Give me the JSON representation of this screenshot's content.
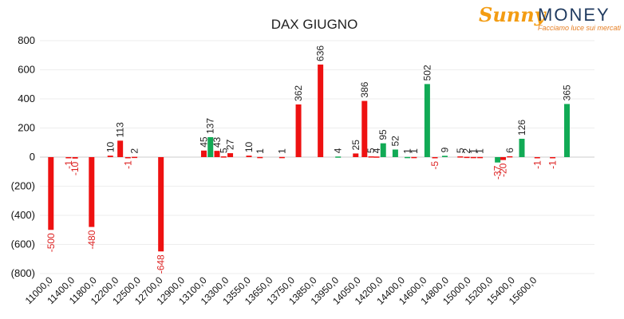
{
  "logo": {
    "brand_a": "Sunny",
    "brand_b": "MONEY",
    "tagline": "Facciamo luce sui mercati",
    "brand_color": "#f39c12",
    "brand_color_2": "#1f3a5f"
  },
  "colors": {
    "red": "#ee1111",
    "green": "#11aa55",
    "neg_label": "#dd2222",
    "label": "#222222",
    "grid": "#eeeeee"
  },
  "chart_data": {
    "type": "bar",
    "title": "DAX GIUGNO",
    "ylim": [
      -800,
      800
    ],
    "yticks": [
      800,
      600,
      400,
      200,
      0,
      -200,
      -400,
      -600,
      -800
    ],
    "ytick_labels": [
      "800",
      "600",
      "400",
      "200",
      "0",
      "(200)",
      "(400)",
      "(600)",
      "(800)"
    ],
    "xtick_labels": [
      "11000,0",
      "11400,0",
      "11800,0",
      "12200,0",
      "12500,0",
      "12700,0",
      "12900,0",
      "13100,0",
      "13300,0",
      "13550,0",
      "13650,0",
      "13750,0",
      "13850,0",
      "13950,0",
      "14050,0",
      "14200,0",
      "14400,0",
      "14600,0",
      "14800,0",
      "15000,0",
      "15200,0",
      "15400,0",
      "15600,0"
    ],
    "grid": true,
    "legend": "none",
    "bars": [
      {
        "x": 0.5,
        "value": -500,
        "color": "red"
      },
      {
        "x": 1.3,
        "value": -1,
        "color": "red"
      },
      {
        "x": 1.6,
        "value": -10,
        "color": "red"
      },
      {
        "x": 2.35,
        "value": -480,
        "color": "red"
      },
      {
        "x": 3.2,
        "value": 10,
        "color": "red"
      },
      {
        "x": 3.65,
        "value": 113,
        "color": "red"
      },
      {
        "x": 4.0,
        "value": -1,
        "color": "red"
      },
      {
        "x": 4.3,
        "value": 2,
        "color": "red"
      },
      {
        "x": 5.5,
        "value": -648,
        "color": "red"
      },
      {
        "x": 7.45,
        "value": 45,
        "color": "red"
      },
      {
        "x": 7.75,
        "value": 137,
        "color": "green"
      },
      {
        "x": 8.05,
        "value": 43,
        "color": "red"
      },
      {
        "x": 8.35,
        "value": 5,
        "color": "red"
      },
      {
        "x": 8.65,
        "value": 27,
        "color": "red"
      },
      {
        "x": 9.5,
        "value": 10,
        "color": "red"
      },
      {
        "x": 10.0,
        "value": 1,
        "color": "red"
      },
      {
        "x": 11.0,
        "value": 1,
        "color": "red"
      },
      {
        "x": 11.75,
        "value": 362,
        "color": "red"
      },
      {
        "x": 12.75,
        "value": 636,
        "color": "red"
      },
      {
        "x": 13.55,
        "value": 4,
        "color": "green"
      },
      {
        "x": 14.35,
        "value": 25,
        "color": "red"
      },
      {
        "x": 14.75,
        "value": 386,
        "color": "red"
      },
      {
        "x": 15.05,
        "value": 5,
        "color": "red"
      },
      {
        "x": 15.3,
        "value": 4,
        "color": "red"
      },
      {
        "x": 15.6,
        "value": 95,
        "color": "green"
      },
      {
        "x": 16.15,
        "value": 52,
        "color": "green"
      },
      {
        "x": 16.7,
        "value": 1,
        "color": "green"
      },
      {
        "x": 17.0,
        "value": 1,
        "color": "red"
      },
      {
        "x": 17.6,
        "value": 502,
        "color": "green"
      },
      {
        "x": 17.95,
        "value": -5,
        "color": "red"
      },
      {
        "x": 18.4,
        "value": 9,
        "color": "green"
      },
      {
        "x": 19.1,
        "value": 5,
        "color": "red"
      },
      {
        "x": 19.4,
        "value": 2,
        "color": "red"
      },
      {
        "x": 19.7,
        "value": 1,
        "color": "red"
      },
      {
        "x": 20.0,
        "value": 1,
        "color": "red"
      },
      {
        "x": 20.8,
        "value": -37,
        "color": "green"
      },
      {
        "x": 21.05,
        "value": -20,
        "color": "red"
      },
      {
        "x": 21.35,
        "value": 6,
        "color": "red"
      },
      {
        "x": 21.9,
        "value": 126,
        "color": "green"
      },
      {
        "x": 22.6,
        "value": -1,
        "color": "red"
      },
      {
        "x": 23.3,
        "value": -1,
        "color": "red"
      },
      {
        "x": 23.95,
        "value": 365,
        "color": "green"
      }
    ]
  }
}
